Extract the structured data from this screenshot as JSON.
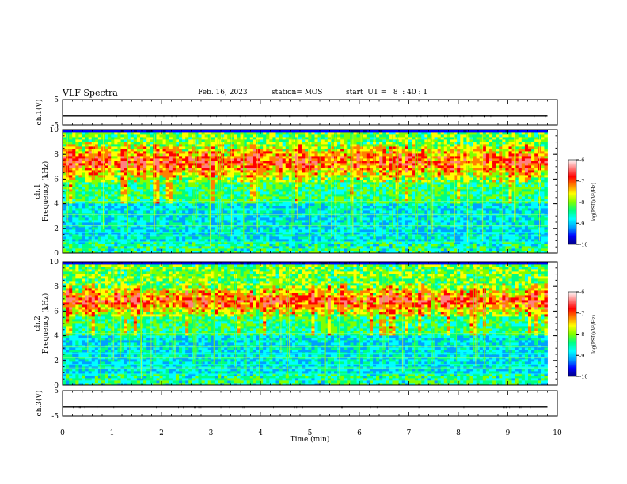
{
  "header": {
    "title": "VLF Spectra",
    "date": "Feb. 16, 2023",
    "station": "station= MOS",
    "start_ut": "start  UT =   8  : 40 : 1"
  },
  "chart_data": [
    {
      "type": "line",
      "name": "ch1-waveform",
      "ylabel": "ch.1(V)",
      "ylim": [
        -5,
        5
      ],
      "yticks": [
        5,
        -5
      ],
      "xlim": [
        0,
        10
      ],
      "level": -1.5
    },
    {
      "type": "heatmap",
      "name": "ch1-spectrogram",
      "ylabel_top": "ch.1",
      "ylabel": "Frequency (kHz)",
      "ylim": [
        0,
        10
      ],
      "yticks": [
        0,
        2,
        4,
        6,
        8,
        10
      ],
      "xlim": [
        0,
        10
      ],
      "active_band_khz": [
        0.3,
        9.8
      ],
      "intense_band_khz": [
        5.8,
        9.0
      ],
      "colorbar": {
        "label": "log(PSD)(V²/Hz)",
        "range": [
          -10,
          -6
        ],
        "ticks": [
          -6,
          -7,
          -8,
          -9,
          -10
        ]
      }
    },
    {
      "type": "heatmap",
      "name": "ch2-spectrogram",
      "ylabel_top": "ch.2",
      "ylabel": "Frequency (kHz)",
      "ylim": [
        0,
        10
      ],
      "yticks": [
        0,
        2,
        4,
        6,
        8,
        10
      ],
      "xlim": [
        0,
        10
      ],
      "active_band_khz": [
        0.3,
        9.8
      ],
      "intense_band_khz": [
        5.5,
        8.2
      ],
      "colorbar": {
        "label": "log(PSD)(V²/Hz)",
        "range": [
          -10,
          -6
        ],
        "ticks": [
          -6,
          -7,
          -8,
          -9,
          -10
        ]
      }
    },
    {
      "type": "line",
      "name": "ch3-waveform",
      "ylabel": "ch.3(V)",
      "ylim": [
        -5,
        5
      ],
      "yticks": [
        5,
        -5
      ],
      "xlim": [
        0,
        10
      ],
      "level": -1.5
    }
  ],
  "xaxis": {
    "label": "Time (min)",
    "ticks": [
      0,
      1,
      2,
      3,
      4,
      5,
      6,
      7,
      8,
      9,
      10
    ]
  },
  "colors": {
    "colormap": [
      "#000080",
      "#0000ff",
      "#00a0ff",
      "#00ffff",
      "#00ff80",
      "#80ff00",
      "#ffff00",
      "#ff8000",
      "#ff0000",
      "#ff8080",
      "#ffffff"
    ]
  }
}
